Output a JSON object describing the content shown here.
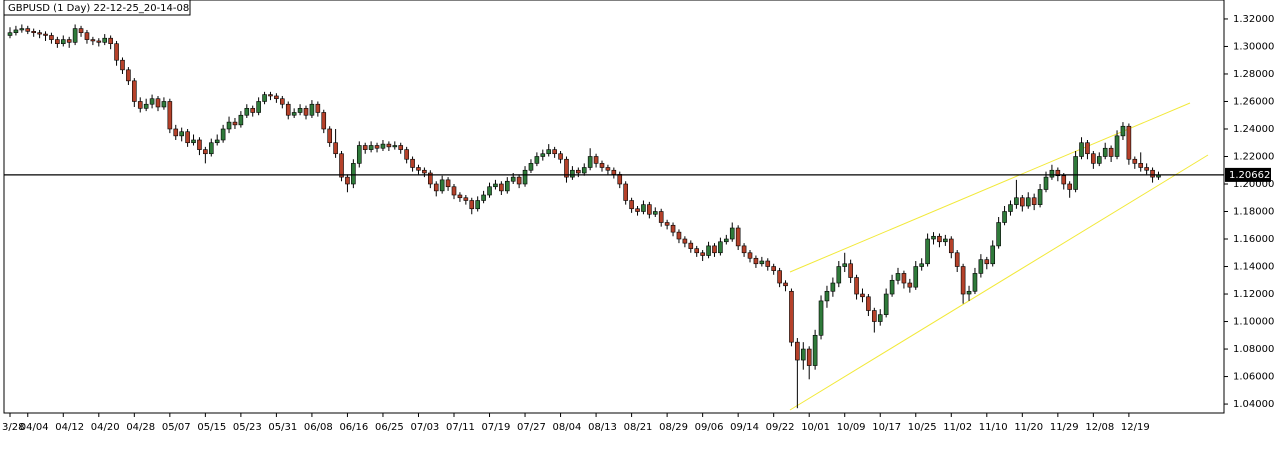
{
  "chart_data": {
    "type": "candlestick",
    "title": "GBPUSD (1 Day) 22-12-25_20-14-08",
    "up_color": "#2f7a3a",
    "down_color": "#b5412a",
    "last_price": 1.20662,
    "ylim": [
      1.0335,
      1.3236
    ],
    "yticks": [
      {
        "value": 1.32,
        "label": "1.32000"
      },
      {
        "value": 1.3,
        "label": "1.30000"
      },
      {
        "value": 1.28,
        "label": "1.28000"
      },
      {
        "value": 1.26,
        "label": "1.26000"
      },
      {
        "value": 1.24,
        "label": "1.24000"
      },
      {
        "value": 1.22,
        "label": "1.22000"
      },
      {
        "value": 1.2,
        "label": "1.20000"
      },
      {
        "value": 1.18,
        "label": "1.18000"
      },
      {
        "value": 1.16,
        "label": "1.16000"
      },
      {
        "value": 1.14,
        "label": "1.14000"
      },
      {
        "value": 1.12,
        "label": "1.12000"
      },
      {
        "value": 1.1,
        "label": "1.10000"
      },
      {
        "value": 1.08,
        "label": "1.08000"
      },
      {
        "value": 1.06,
        "label": "1.06000"
      },
      {
        "value": 1.04,
        "label": "1.04000"
      }
    ],
    "categories": [
      "3/28",
      null,
      null,
      "04/04",
      null,
      null,
      null,
      null,
      null,
      "04/12",
      null,
      null,
      null,
      null,
      null,
      "04/20",
      null,
      null,
      null,
      null,
      null,
      "04/28",
      null,
      null,
      null,
      null,
      null,
      "05/07",
      null,
      null,
      null,
      null,
      null,
      "05/15",
      null,
      null,
      null,
      null,
      null,
      "05/23",
      null,
      null,
      null,
      null,
      null,
      "05/31",
      null,
      null,
      null,
      null,
      null,
      "06/08",
      null,
      null,
      null,
      null,
      null,
      "06/16",
      null,
      null,
      null,
      null,
      null,
      "06/25",
      null,
      null,
      null,
      null,
      null,
      "07/03",
      null,
      null,
      null,
      null,
      null,
      "07/11",
      null,
      null,
      null,
      null,
      null,
      "07/19",
      null,
      null,
      null,
      null,
      null,
      "07/27",
      null,
      null,
      null,
      null,
      null,
      "08/04",
      null,
      null,
      null,
      null,
      null,
      "08/13",
      null,
      null,
      null,
      null,
      null,
      "08/21",
      null,
      null,
      null,
      null,
      null,
      "08/29",
      null,
      null,
      null,
      null,
      null,
      "09/06",
      null,
      null,
      null,
      null,
      null,
      "09/14",
      null,
      null,
      null,
      null,
      null,
      "09/22",
      null,
      null,
      null,
      null,
      null,
      "10/01",
      null,
      null,
      null,
      null,
      null,
      "10/09",
      null,
      null,
      null,
      null,
      null,
      "10/17",
      null,
      null,
      null,
      null,
      null,
      "10/25",
      null,
      null,
      null,
      null,
      null,
      "11/02",
      null,
      null,
      null,
      null,
      null,
      "11/10",
      null,
      null,
      null,
      null,
      null,
      "11/20",
      null,
      null,
      null,
      null,
      null,
      "11/29",
      null,
      null,
      null,
      null,
      null,
      "12/08",
      null,
      null,
      null,
      null,
      null,
      "12/19",
      null,
      null,
      null,
      null,
      null
    ],
    "candles": [
      [
        1.308,
        1.314,
        1.306,
        1.31
      ],
      [
        1.31,
        1.315,
        1.308,
        1.312
      ],
      [
        1.312,
        1.316,
        1.31,
        1.313
      ],
      [
        1.313,
        1.315,
        1.309,
        1.311
      ],
      [
        1.311,
        1.313,
        1.307,
        1.31
      ],
      [
        1.31,
        1.312,
        1.306,
        1.309
      ],
      [
        1.309,
        1.311,
        1.304,
        1.308
      ],
      [
        1.308,
        1.31,
        1.302,
        1.305
      ],
      [
        1.305,
        1.307,
        1.299,
        1.302
      ],
      [
        1.302,
        1.308,
        1.3,
        1.305
      ],
      [
        1.305,
        1.307,
        1.299,
        1.303
      ],
      [
        1.303,
        1.316,
        1.301,
        1.313
      ],
      [
        1.313,
        1.315,
        1.307,
        1.31
      ],
      [
        1.31,
        1.312,
        1.302,
        1.305
      ],
      [
        1.305,
        1.307,
        1.301,
        1.304
      ],
      [
        1.304,
        1.306,
        1.3,
        1.303
      ],
      [
        1.303,
        1.309,
        1.301,
        1.306
      ],
      [
        1.306,
        1.308,
        1.298,
        1.302
      ],
      [
        1.302,
        1.304,
        1.286,
        1.29
      ],
      [
        1.29,
        1.292,
        1.28,
        1.283
      ],
      [
        1.283,
        1.285,
        1.272,
        1.275
      ],
      [
        1.275,
        1.277,
        1.256,
        1.26
      ],
      [
        1.26,
        1.263,
        1.252,
        1.255
      ],
      [
        1.255,
        1.262,
        1.253,
        1.258
      ],
      [
        1.258,
        1.265,
        1.255,
        1.262
      ],
      [
        1.262,
        1.264,
        1.253,
        1.256
      ],
      [
        1.256,
        1.263,
        1.254,
        1.26
      ],
      [
        1.26,
        1.262,
        1.237,
        1.24
      ],
      [
        1.24,
        1.243,
        1.232,
        1.235
      ],
      [
        1.235,
        1.241,
        1.231,
        1.238
      ],
      [
        1.238,
        1.24,
        1.227,
        1.23
      ],
      [
        1.23,
        1.236,
        1.228,
        1.232
      ],
      [
        1.232,
        1.234,
        1.221,
        1.225
      ],
      [
        1.225,
        1.227,
        1.215,
        1.222
      ],
      [
        1.222,
        1.233,
        1.22,
        1.23
      ],
      [
        1.23,
        1.236,
        1.228,
        1.232
      ],
      [
        1.232,
        1.243,
        1.23,
        1.24
      ],
      [
        1.24,
        1.249,
        1.237,
        1.245
      ],
      [
        1.245,
        1.248,
        1.24,
        1.243
      ],
      [
        1.243,
        1.253,
        1.241,
        1.25
      ],
      [
        1.25,
        1.258,
        1.248,
        1.255
      ],
      [
        1.255,
        1.257,
        1.249,
        1.252
      ],
      [
        1.252,
        1.263,
        1.25,
        1.26
      ],
      [
        1.26,
        1.267,
        1.258,
        1.265
      ],
      [
        1.265,
        1.267,
        1.261,
        1.264
      ],
      [
        1.264,
        1.266,
        1.259,
        1.262
      ],
      [
        1.262,
        1.264,
        1.255,
        1.258
      ],
      [
        1.258,
        1.26,
        1.247,
        1.25
      ],
      [
        1.25,
        1.255,
        1.248,
        1.252
      ],
      [
        1.252,
        1.258,
        1.25,
        1.255
      ],
      [
        1.255,
        1.257,
        1.247,
        1.25
      ],
      [
        1.25,
        1.261,
        1.248,
        1.258
      ],
      [
        1.258,
        1.26,
        1.249,
        1.252
      ],
      [
        1.252,
        1.254,
        1.237,
        1.24
      ],
      [
        1.24,
        1.242,
        1.227,
        1.23
      ],
      [
        1.23,
        1.24,
        1.219,
        1.222
      ],
      [
        1.222,
        1.224,
        1.202,
        1.205
      ],
      [
        1.205,
        1.207,
        1.194,
        1.2
      ],
      [
        1.2,
        1.218,
        1.197,
        1.215
      ],
      [
        1.215,
        1.231,
        1.212,
        1.228
      ],
      [
        1.228,
        1.23,
        1.222,
        1.225
      ],
      [
        1.225,
        1.231,
        1.223,
        1.228
      ],
      [
        1.228,
        1.23,
        1.223,
        1.226
      ],
      [
        1.226,
        1.232,
        1.224,
        1.229
      ],
      [
        1.229,
        1.231,
        1.224,
        1.227
      ],
      [
        1.227,
        1.231,
        1.225,
        1.228
      ],
      [
        1.228,
        1.23,
        1.222,
        1.225
      ],
      [
        1.225,
        1.227,
        1.215,
        1.218
      ],
      [
        1.218,
        1.22,
        1.209,
        1.212
      ],
      [
        1.212,
        1.214,
        1.207,
        1.21
      ],
      [
        1.21,
        1.212,
        1.205,
        1.208
      ],
      [
        1.208,
        1.21,
        1.197,
        1.2
      ],
      [
        1.2,
        1.202,
        1.191,
        1.195
      ],
      [
        1.195,
        1.206,
        1.193,
        1.203
      ],
      [
        1.203,
        1.205,
        1.195,
        1.198
      ],
      [
        1.198,
        1.2,
        1.189,
        1.192
      ],
      [
        1.192,
        1.194,
        1.187,
        1.19
      ],
      [
        1.19,
        1.192,
        1.185,
        1.188
      ],
      [
        1.188,
        1.19,
        1.178,
        1.182
      ],
      [
        1.182,
        1.191,
        1.18,
        1.188
      ],
      [
        1.188,
        1.195,
        1.186,
        1.192
      ],
      [
        1.192,
        1.201,
        1.19,
        1.198
      ],
      [
        1.198,
        1.203,
        1.196,
        1.2
      ],
      [
        1.2,
        1.202,
        1.192,
        1.195
      ],
      [
        1.195,
        1.205,
        1.193,
        1.202
      ],
      [
        1.202,
        1.208,
        1.2,
        1.205
      ],
      [
        1.205,
        1.207,
        1.197,
        1.2
      ],
      [
        1.2,
        1.213,
        1.198,
        1.21
      ],
      [
        1.21,
        1.218,
        1.208,
        1.215
      ],
      [
        1.215,
        1.223,
        1.213,
        1.22
      ],
      [
        1.22,
        1.225,
        1.217,
        1.222
      ],
      [
        1.222,
        1.229,
        1.22,
        1.225
      ],
      [
        1.225,
        1.227,
        1.219,
        1.222
      ],
      [
        1.222,
        1.224,
        1.215,
        1.218
      ],
      [
        1.218,
        1.22,
        1.201,
        1.205
      ],
      [
        1.205,
        1.213,
        1.203,
        1.21
      ],
      [
        1.21,
        1.212,
        1.205,
        1.208
      ],
      [
        1.208,
        1.215,
        1.206,
        1.212
      ],
      [
        1.212,
        1.226,
        1.21,
        1.22
      ],
      [
        1.22,
        1.222,
        1.212,
        1.215
      ],
      [
        1.215,
        1.217,
        1.209,
        1.212
      ],
      [
        1.212,
        1.214,
        1.207,
        1.21
      ],
      [
        1.21,
        1.212,
        1.204,
        1.207
      ],
      [
        1.207,
        1.209,
        1.197,
        1.2
      ],
      [
        1.2,
        1.202,
        1.185,
        1.188
      ],
      [
        1.188,
        1.19,
        1.179,
        1.182
      ],
      [
        1.182,
        1.184,
        1.177,
        1.18
      ],
      [
        1.18,
        1.188,
        1.178,
        1.185
      ],
      [
        1.185,
        1.187,
        1.175,
        1.178
      ],
      [
        1.178,
        1.183,
        1.176,
        1.18
      ],
      [
        1.18,
        1.182,
        1.169,
        1.172
      ],
      [
        1.172,
        1.174,
        1.167,
        1.17
      ],
      [
        1.17,
        1.172,
        1.162,
        1.165
      ],
      [
        1.165,
        1.167,
        1.157,
        1.16
      ],
      [
        1.16,
        1.162,
        1.154,
        1.157
      ],
      [
        1.157,
        1.159,
        1.15,
        1.153
      ],
      [
        1.153,
        1.155,
        1.147,
        1.15
      ],
      [
        1.15,
        1.152,
        1.144,
        1.148
      ],
      [
        1.148,
        1.158,
        1.146,
        1.155
      ],
      [
        1.155,
        1.157,
        1.147,
        1.15
      ],
      [
        1.15,
        1.161,
        1.148,
        1.158
      ],
      [
        1.158,
        1.163,
        1.156,
        1.16
      ],
      [
        1.16,
        1.172,
        1.158,
        1.168
      ],
      [
        1.168,
        1.17,
        1.152,
        1.155
      ],
      [
        1.155,
        1.157,
        1.147,
        1.15
      ],
      [
        1.15,
        1.152,
        1.143,
        1.146
      ],
      [
        1.146,
        1.148,
        1.139,
        1.142
      ],
      [
        1.142,
        1.147,
        1.14,
        1.144
      ],
      [
        1.144,
        1.146,
        1.137,
        1.14
      ],
      [
        1.14,
        1.142,
        1.134,
        1.137
      ],
      [
        1.137,
        1.139,
        1.125,
        1.128
      ],
      [
        1.128,
        1.13,
        1.122,
        1.126
      ],
      [
        1.122,
        1.124,
        1.082,
        1.085
      ],
      [
        1.085,
        1.088,
        1.037,
        1.072
      ],
      [
        1.072,
        1.085,
        1.065,
        1.08
      ],
      [
        1.08,
        1.082,
        1.058,
        1.068
      ],
      [
        1.068,
        1.094,
        1.065,
        1.09
      ],
      [
        1.09,
        1.119,
        1.087,
        1.115
      ],
      [
        1.115,
        1.126,
        1.11,
        1.122
      ],
      [
        1.122,
        1.132,
        1.118,
        1.128
      ],
      [
        1.128,
        1.144,
        1.125,
        1.14
      ],
      [
        1.14,
        1.15,
        1.136,
        1.142
      ],
      [
        1.142,
        1.145,
        1.128,
        1.132
      ],
      [
        1.132,
        1.134,
        1.116,
        1.12
      ],
      [
        1.12,
        1.124,
        1.114,
        1.118
      ],
      [
        1.118,
        1.12,
        1.104,
        1.108
      ],
      [
        1.108,
        1.11,
        1.092,
        1.1
      ],
      [
        1.1,
        1.109,
        1.097,
        1.105
      ],
      [
        1.105,
        1.124,
        1.103,
        1.12
      ],
      [
        1.12,
        1.134,
        1.118,
        1.13
      ],
      [
        1.13,
        1.139,
        1.127,
        1.135
      ],
      [
        1.135,
        1.137,
        1.124,
        1.128
      ],
      [
        1.128,
        1.131,
        1.121,
        1.125
      ],
      [
        1.125,
        1.144,
        1.123,
        1.14
      ],
      [
        1.14,
        1.146,
        1.137,
        1.142
      ],
      [
        1.142,
        1.164,
        1.14,
        1.16
      ],
      [
        1.16,
        1.165,
        1.156,
        1.162
      ],
      [
        1.162,
        1.164,
        1.154,
        1.158
      ],
      [
        1.158,
        1.163,
        1.155,
        1.16
      ],
      [
        1.16,
        1.162,
        1.146,
        1.15
      ],
      [
        1.15,
        1.152,
        1.136,
        1.14
      ],
      [
        1.14,
        1.142,
        1.113,
        1.12
      ],
      [
        1.12,
        1.126,
        1.115,
        1.122
      ],
      [
        1.122,
        1.139,
        1.12,
        1.135
      ],
      [
        1.135,
        1.149,
        1.132,
        1.145
      ],
      [
        1.145,
        1.147,
        1.138,
        1.142
      ],
      [
        1.142,
        1.159,
        1.14,
        1.155
      ],
      [
        1.155,
        1.176,
        1.153,
        1.172
      ],
      [
        1.172,
        1.184,
        1.17,
        1.18
      ],
      [
        1.18,
        1.188,
        1.177,
        1.185
      ],
      [
        1.185,
        1.203,
        1.182,
        1.19
      ],
      [
        1.19,
        1.192,
        1.18,
        1.184
      ],
      [
        1.184,
        1.194,
        1.182,
        1.19
      ],
      [
        1.19,
        1.193,
        1.181,
        1.185
      ],
      [
        1.185,
        1.2,
        1.183,
        1.196
      ],
      [
        1.196,
        1.209,
        1.194,
        1.205
      ],
      [
        1.205,
        1.214,
        1.203,
        1.21
      ],
      [
        1.21,
        1.212,
        1.202,
        1.206
      ],
      [
        1.206,
        1.208,
        1.196,
        1.2
      ],
      [
        1.2,
        1.202,
        1.19,
        1.196
      ],
      [
        1.196,
        1.224,
        1.194,
        1.22
      ],
      [
        1.22,
        1.234,
        1.218,
        1.23
      ],
      [
        1.23,
        1.232,
        1.218,
        1.222
      ],
      [
        1.222,
        1.224,
        1.211,
        1.215
      ],
      [
        1.215,
        1.223,
        1.213,
        1.22
      ],
      [
        1.22,
        1.23,
        1.218,
        1.226
      ],
      [
        1.226,
        1.228,
        1.216,
        1.22
      ],
      [
        1.22,
        1.239,
        1.218,
        1.235
      ],
      [
        1.235,
        1.245,
        1.232,
        1.242
      ],
      [
        1.242,
        1.244,
        1.214,
        1.218
      ],
      [
        1.218,
        1.22,
        1.211,
        1.215
      ],
      [
        1.215,
        1.223,
        1.209,
        1.212
      ],
      [
        1.212,
        1.215,
        1.207,
        1.21
      ],
      [
        1.21,
        1.212,
        1.201,
        1.205
      ],
      [
        1.205,
        1.209,
        1.203,
        1.20662
      ]
    ]
  }
}
